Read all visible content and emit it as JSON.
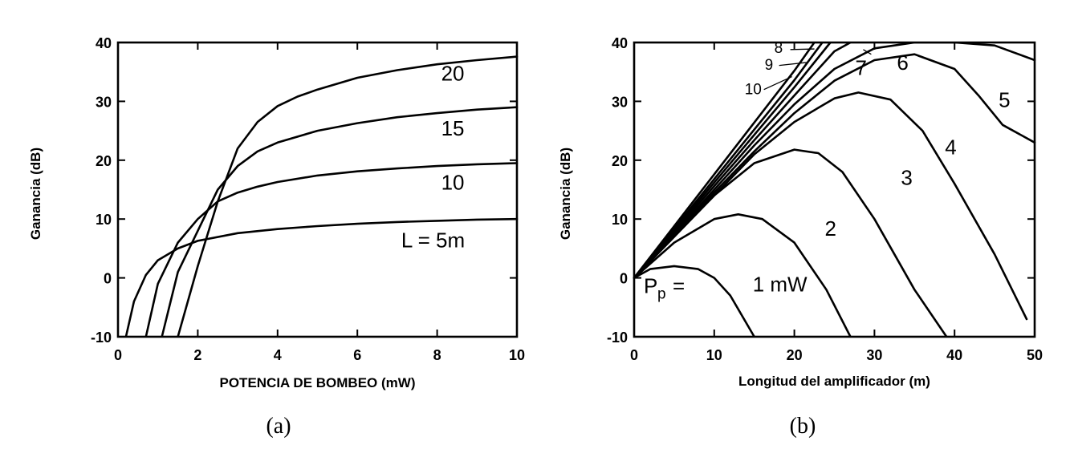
{
  "chart_data": [
    {
      "type": "line",
      "caption": "(a)",
      "xlabel": "POTENCIA DE BOMBEO (mW)",
      "ylabel": "Ganancia (dB)",
      "xlim": [
        0,
        10
      ],
      "ylim": [
        -10,
        40
      ],
      "xticks": [
        0,
        2,
        4,
        6,
        8,
        10
      ],
      "yticks": [
        -10,
        0,
        10,
        20,
        30,
        40
      ],
      "grid": false,
      "series": [
        {
          "name": "L = 5m",
          "x": [
            0.2,
            0.4,
            0.7,
            1.0,
            1.5,
            2.0,
            3.0,
            4.0,
            5.0,
            6.0,
            7.0,
            8.0,
            9.0,
            10.0
          ],
          "y": [
            -10,
            -4,
            0.5,
            3,
            5,
            6.3,
            7.6,
            8.3,
            8.8,
            9.2,
            9.5,
            9.7,
            9.9,
            10
          ]
        },
        {
          "name": "10",
          "x": [
            0.7,
            1.0,
            1.5,
            2.0,
            2.5,
            3.0,
            3.5,
            4.0,
            5.0,
            6.0,
            7.0,
            8.0,
            9.0,
            10.0
          ],
          "y": [
            -10,
            -1,
            6,
            10,
            13,
            14.5,
            15.5,
            16.3,
            17.4,
            18.1,
            18.6,
            19.0,
            19.3,
            19.5
          ]
        },
        {
          "name": "15",
          "x": [
            1.1,
            1.5,
            2.0,
            2.5,
            3.0,
            3.5,
            4.0,
            5.0,
            6.0,
            7.0,
            8.0,
            9.0,
            10.0
          ],
          "y": [
            -10,
            1,
            8,
            15,
            19,
            21.5,
            23,
            25,
            26.3,
            27.3,
            28,
            28.6,
            29
          ]
        },
        {
          "name": "20",
          "x": [
            1.5,
            2.0,
            2.5,
            3.0,
            3.5,
            4.0,
            4.5,
            5.0,
            6.0,
            7.0,
            8.0,
            9.0,
            10.0
          ],
          "y": [
            -10,
            2,
            13,
            22,
            26.5,
            29.2,
            30.8,
            32,
            34,
            35.3,
            36.3,
            37,
            37.6
          ]
        }
      ],
      "curve_labels": [
        {
          "text": "20",
          "x": 8.1,
          "y": 33.5
        },
        {
          "text": "15",
          "x": 8.1,
          "y": 24.2
        },
        {
          "text": "10",
          "x": 8.1,
          "y": 15.0
        },
        {
          "text": "L = 5m",
          "x": 7.1,
          "y": 5.2
        }
      ]
    },
    {
      "type": "line",
      "caption": "(b)",
      "xlabel": "Longitud del amplificador (m)",
      "ylabel": "Ganancia (dB)",
      "xlim": [
        0,
        50
      ],
      "ylim": [
        -10,
        40
      ],
      "xticks": [
        0,
        10,
        20,
        30,
        40,
        50
      ],
      "yticks": [
        -10,
        0,
        10,
        20,
        30,
        40
      ],
      "grid": false,
      "series": [
        {
          "name": "1 mW",
          "x": [
            0,
            2,
            5,
            8,
            10,
            12,
            15
          ],
          "y": [
            0,
            1.5,
            2,
            1.5,
            0,
            -3,
            -10
          ]
        },
        {
          "name": "2",
          "x": [
            0,
            5,
            10,
            13,
            16,
            20,
            24,
            27
          ],
          "y": [
            0,
            6,
            10,
            10.8,
            10,
            6,
            -2,
            -10
          ]
        },
        {
          "name": "3",
          "x": [
            0,
            5,
            10,
            15,
            20,
            23,
            26,
            30,
            35,
            39
          ],
          "y": [
            0,
            7,
            14,
            19.5,
            21.8,
            21.2,
            18,
            10,
            -2,
            -10
          ]
        },
        {
          "name": "4",
          "x": [
            0,
            5,
            10,
            15,
            20,
            25,
            28,
            32,
            36,
            40,
            45,
            49
          ],
          "y": [
            0,
            7,
            14,
            21,
            26.5,
            30.5,
            31.5,
            30.3,
            25,
            16,
            4,
            -7
          ]
        },
        {
          "name": "5",
          "x": [
            0,
            5,
            10,
            15,
            20,
            25,
            30,
            35,
            40,
            43,
            46,
            50
          ],
          "y": [
            0,
            7.3,
            14.5,
            21.5,
            28,
            33.5,
            37,
            38,
            35.5,
            31,
            26,
            23
          ]
        },
        {
          "name": "6",
          "x": [
            0,
            5,
            10,
            15,
            20,
            25,
            30,
            35,
            40,
            45,
            50
          ],
          "y": [
            0,
            7.5,
            15,
            22.5,
            29.5,
            35.5,
            39,
            40,
            40,
            39.5,
            37
          ]
        },
        {
          "name": "7",
          "x": [
            0,
            5,
            10,
            15,
            20,
            25,
            27
          ],
          "y": [
            0,
            7.8,
            15.6,
            23.4,
            31,
            38.5,
            40
          ]
        },
        {
          "name": "8",
          "x": [
            0,
            5,
            10,
            15,
            20,
            24.5
          ],
          "y": [
            0,
            8.1,
            16.2,
            24.3,
            32.4,
            40
          ]
        },
        {
          "name": "9",
          "x": [
            0,
            5,
            10,
            15,
            20,
            23.5
          ],
          "y": [
            0,
            8.4,
            16.8,
            25.2,
            33.6,
            40
          ]
        },
        {
          "name": "10",
          "x": [
            0,
            5,
            10,
            15,
            20,
            22.5
          ],
          "y": [
            0,
            8.8,
            17.6,
            26.4,
            35.2,
            40
          ]
        }
      ],
      "curve_labels": [
        {
          "text": "8",
          "x": 17.5,
          "y": 38.2
        },
        {
          "text": "9",
          "x": 16.3,
          "y": 35.4
        },
        {
          "text": "10",
          "x": 13.8,
          "y": 31.2
        },
        {
          "text": "7",
          "x": 27.6,
          "y": 34.5
        },
        {
          "text": "6",
          "x": 32.8,
          "y": 35.4
        },
        {
          "text": "5",
          "x": 45.5,
          "y": 29.0
        },
        {
          "text": "4",
          "x": 38.8,
          "y": 21.0
        },
        {
          "text": "3",
          "x": 33.3,
          "y": 15.8
        },
        {
          "text": "2",
          "x": 23.8,
          "y": 7.2
        },
        {
          "text": "1 mW",
          "x": 14.8,
          "y": -2.3
        }
      ],
      "pump_label": {
        "base": "P",
        "sub": "p",
        "eq": "="
      }
    }
  ]
}
